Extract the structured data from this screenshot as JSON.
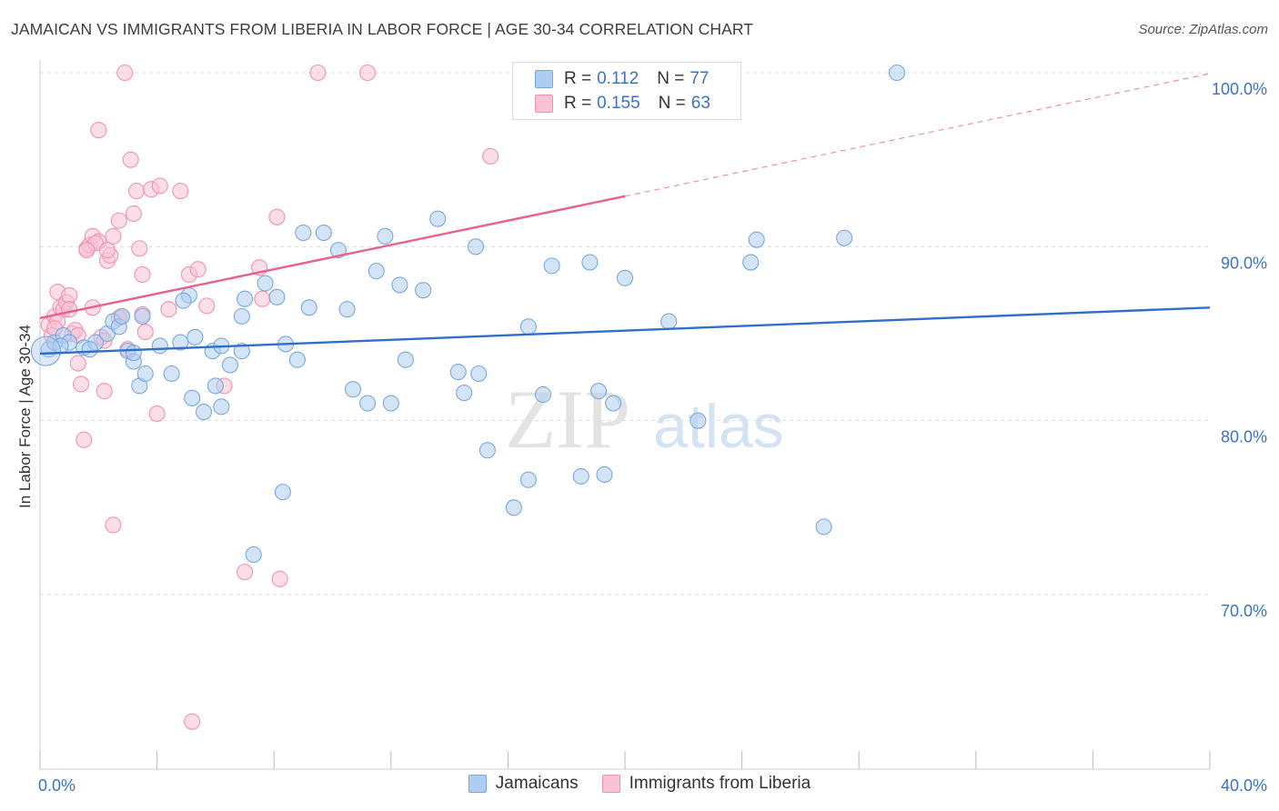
{
  "title": "JAMAICAN VS IMMIGRANTS FROM LIBERIA IN LABOR FORCE | AGE 30-34 CORRELATION CHART",
  "source": "Source: ZipAtlas.com",
  "colors": {
    "blue_fill": "#aecdf0",
    "blue_stroke": "#7aa8dc",
    "blue_line": "#2f6fc9",
    "pink_fill": "#f9c3d3",
    "pink_stroke": "#ee93b0",
    "pink_line": "#e8608c",
    "axis_text": "#3b72c4",
    "grid": "#dddddd"
  },
  "legend": {
    "row1": {
      "r_label": "R =",
      "r_value": "0.112",
      "n_label": "N =",
      "n_value": "77"
    },
    "row2": {
      "r_label": "R =",
      "r_value": "0.155",
      "n_label": "N =",
      "n_value": "63"
    }
  },
  "bottom_legend": {
    "series1": "Jamaicans",
    "series2": "Immigrants from Liberia"
  },
  "watermark": {
    "zip": "ZIP",
    "atlas": "atlas"
  },
  "chart_data": {
    "type": "scatter",
    "title": "JAMAICAN VS IMMIGRANTS FROM LIBERIA IN LABOR FORCE | AGE 30-34 CORRELATION CHART",
    "xlabel": "",
    "ylabel": "In Labor Force | Age 30-34",
    "xlim": [
      0,
      40
    ],
    "ylim": [
      61,
      101.5
    ],
    "x_tick_labels": [
      "0.0%",
      "40.0%"
    ],
    "y_ticks": [
      70,
      80,
      90,
      100
    ],
    "y_tick_labels": [
      "70.0%",
      "80.0%",
      "90.0%",
      "100.0%"
    ],
    "grid": true,
    "legend_position": "top-center",
    "series": [
      {
        "name": "Jamaicans",
        "color": "blue",
        "r": 0.112,
        "n": 77,
        "trend": {
          "x0": 0,
          "y0": 83.85,
          "x1": 40,
          "y1": 86.5
        },
        "points": [
          [
            0.3,
            84.1
          ],
          [
            0.5,
            84.5
          ],
          [
            0.8,
            84.9
          ],
          [
            1.0,
            84.5
          ],
          [
            1.5,
            84.2
          ],
          [
            1.9,
            84.5
          ],
          [
            2.3,
            85.0
          ],
          [
            2.5,
            85.7
          ],
          [
            3.0,
            84.0
          ],
          [
            3.2,
            83.4
          ],
          [
            3.4,
            82.0
          ],
          [
            3.6,
            82.7
          ],
          [
            3.5,
            86.0
          ],
          [
            4.1,
            84.3
          ],
          [
            4.5,
            82.7
          ],
          [
            4.8,
            84.5
          ],
          [
            5.1,
            87.2
          ],
          [
            5.3,
            84.8
          ],
          [
            5.6,
            80.5
          ],
          [
            5.9,
            84.0
          ],
          [
            6.2,
            84.3
          ],
          [
            6.5,
            83.2
          ],
          [
            6.0,
            82.0
          ],
          [
            6.9,
            86.0
          ],
          [
            7.0,
            87.0
          ],
          [
            7.3,
            72.3
          ],
          [
            7.7,
            87.9
          ],
          [
            8.1,
            87.1
          ],
          [
            8.4,
            84.4
          ],
          [
            8.8,
            83.5
          ],
          [
            9.2,
            86.5
          ],
          [
            9.7,
            90.8
          ],
          [
            10.2,
            89.8
          ],
          [
            10.5,
            86.4
          ],
          [
            10.7,
            81.8
          ],
          [
            11.2,
            81.0
          ],
          [
            11.5,
            88.6
          ],
          [
            11.8,
            90.6
          ],
          [
            12.0,
            81.0
          ],
          [
            12.3,
            87.8
          ],
          [
            12.5,
            83.5
          ],
          [
            13.1,
            87.5
          ],
          [
            13.6,
            91.6
          ],
          [
            14.3,
            82.8
          ],
          [
            14.5,
            81.6
          ],
          [
            14.9,
            90.0
          ],
          [
            15.3,
            78.3
          ],
          [
            16.2,
            75.0
          ],
          [
            16.7,
            85.4
          ],
          [
            17.2,
            81.5
          ],
          [
            17.5,
            88.9
          ],
          [
            18.5,
            76.8
          ],
          [
            18.8,
            89.1
          ],
          [
            19.1,
            81.7
          ],
          [
            19.6,
            81.0
          ],
          [
            20.0,
            88.2
          ],
          [
            21.5,
            85.7
          ],
          [
            22.5,
            80.0
          ],
          [
            24.3,
            89.1
          ],
          [
            24.5,
            90.4
          ],
          [
            26.8,
            73.9
          ],
          [
            27.5,
            90.5
          ],
          [
            29.3,
            100.0
          ],
          [
            9.0,
            90.8
          ],
          [
            8.3,
            75.9
          ],
          [
            16.7,
            76.6
          ],
          [
            19.3,
            76.9
          ],
          [
            2.7,
            85.4
          ],
          [
            4.9,
            86.9
          ],
          [
            1.7,
            84.1
          ],
          [
            0.7,
            84.3
          ],
          [
            5.2,
            81.3
          ],
          [
            6.2,
            80.8
          ],
          [
            3.2,
            83.9
          ],
          [
            15.0,
            82.7
          ],
          [
            2.8,
            86.0
          ],
          [
            6.9,
            84.0
          ]
        ]
      },
      {
        "name": "Immigrants from Liberia",
        "color": "pink",
        "r": 0.155,
        "n": 63,
        "trend": {
          "x0": 0,
          "y0": 85.9,
          "x1": 20,
          "y1": 92.9,
          "dashed_to": {
            "x": 40,
            "y": 99.95
          }
        },
        "points": [
          [
            0.3,
            85.5
          ],
          [
            0.4,
            84.9
          ],
          [
            0.5,
            86.0
          ],
          [
            0.6,
            87.4
          ],
          [
            0.7,
            86.5
          ],
          [
            0.8,
            86.4
          ],
          [
            0.9,
            86.8
          ],
          [
            1.0,
            87.2
          ],
          [
            1.1,
            85.0
          ],
          [
            1.2,
            85.2
          ],
          [
            1.3,
            83.3
          ],
          [
            1.4,
            82.1
          ],
          [
            1.5,
            78.9
          ],
          [
            1.6,
            89.9
          ],
          [
            1.7,
            90.1
          ],
          [
            1.8,
            90.6
          ],
          [
            2.0,
            90.3
          ],
          [
            2.1,
            84.8
          ],
          [
            2.2,
            81.7
          ],
          [
            2.3,
            89.2
          ],
          [
            2.5,
            74.0
          ],
          [
            2.5,
            90.6
          ],
          [
            2.7,
            91.5
          ],
          [
            2.8,
            86.0
          ],
          [
            2.9,
            100.0
          ],
          [
            3.0,
            84.1
          ],
          [
            3.1,
            95.0
          ],
          [
            3.2,
            91.9
          ],
          [
            3.3,
            93.2
          ],
          [
            3.4,
            89.9
          ],
          [
            3.5,
            88.4
          ],
          [
            3.8,
            93.3
          ],
          [
            4.0,
            80.4
          ],
          [
            4.1,
            93.5
          ],
          [
            4.4,
            86.4
          ],
          [
            4.8,
            93.2
          ],
          [
            5.1,
            88.4
          ],
          [
            5.2,
            62.7
          ],
          [
            5.4,
            88.7
          ],
          [
            5.7,
            86.6
          ],
          [
            6.3,
            82.0
          ],
          [
            7.0,
            71.3
          ],
          [
            7.5,
            88.8
          ],
          [
            7.6,
            87.0
          ],
          [
            8.1,
            91.7
          ],
          [
            8.2,
            70.9
          ],
          [
            9.5,
            100.0
          ],
          [
            11.2,
            100.0
          ],
          [
            15.4,
            95.2
          ],
          [
            2.0,
            96.7
          ],
          [
            1.8,
            86.5
          ],
          [
            0.6,
            85.7
          ],
          [
            1.3,
            84.9
          ],
          [
            2.4,
            89.5
          ],
          [
            3.6,
            85.1
          ],
          [
            1.0,
            86.4
          ],
          [
            0.5,
            85.3
          ],
          [
            2.2,
            84.6
          ],
          [
            2.7,
            85.9
          ],
          [
            3.5,
            86.1
          ],
          [
            1.9,
            90.2
          ],
          [
            2.3,
            89.8
          ],
          [
            1.6,
            89.8
          ]
        ]
      }
    ]
  }
}
